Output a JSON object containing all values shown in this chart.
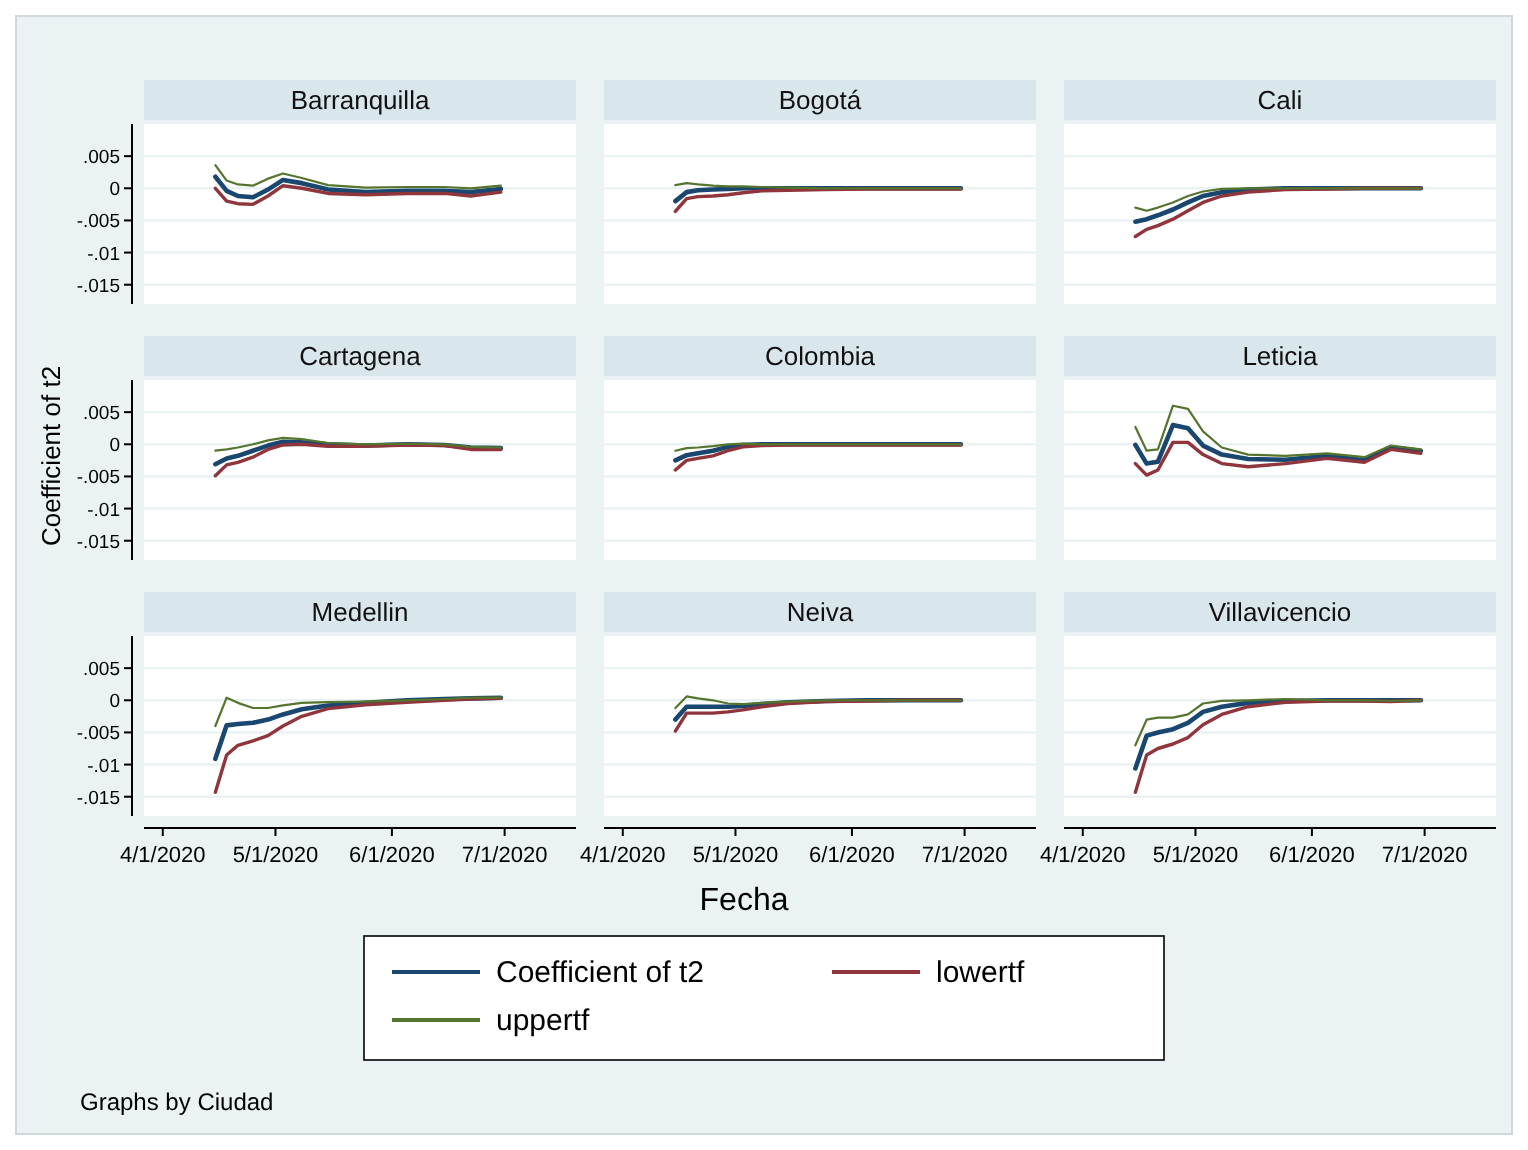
{
  "chart_data": [
    {
      "type": "line",
      "title": "Barranquilla",
      "x": [
        "2020-04-15",
        "2020-04-18",
        "2020-04-21",
        "2020-04-25",
        "2020-04-29",
        "2020-05-03",
        "2020-05-08",
        "2020-05-15",
        "2020-05-25",
        "2020-06-05",
        "2020-06-15",
        "2020-06-22",
        "2020-06-30"
      ],
      "xlim": [
        "2020-03-27",
        "2020-07-20"
      ],
      "ylim": [
        -0.018,
        0.01
      ],
      "yticks": [
        {
          "value": -0.015,
          "label": "-.015"
        },
        {
          "value": -0.01,
          "label": "-.01"
        },
        {
          "value": -0.005,
          "label": "-.005"
        },
        {
          "value": 0,
          "label": "0"
        },
        {
          "value": 0.005,
          "label": ".005"
        }
      ],
      "grid": "y",
      "tick_labels": "y",
      "series": [
        {
          "color": "#1a476f",
          "values": [
            0.0018,
            -0.0004,
            -0.0012,
            -0.0014,
            -0.0002,
            0.0013,
            0.0008,
            -0.0002,
            -0.0006,
            -0.0004,
            -0.0004,
            -0.0006,
            -0.0001
          ]
        },
        {
          "color": "#90353b",
          "values": [
            0,
            -0.002,
            -0.0024,
            -0.0025,
            -0.0012,
            0.0004,
            0,
            -0.0008,
            -0.001,
            -0.0008,
            -0.0008,
            -0.0012,
            -0.0006
          ]
        },
        {
          "color": "#55752f",
          "values": [
            0.0036,
            0.0012,
            0.0006,
            0.0004,
            0.0015,
            0.0023,
            0.0016,
            0.0005,
            0.0001,
            0.0002,
            0.0002,
            0,
            0.0004
          ]
        }
      ]
    },
    {
      "type": "line",
      "title": "Bogotá",
      "x": [
        "2020-04-15",
        "2020-04-18",
        "2020-04-21",
        "2020-04-25",
        "2020-04-29",
        "2020-05-03",
        "2020-05-08",
        "2020-05-15",
        "2020-05-25",
        "2020-06-05",
        "2020-06-15",
        "2020-06-22",
        "2020-06-30"
      ],
      "xlim": [
        "2020-03-27",
        "2020-07-20"
      ],
      "ylim": [
        -0.018,
        0.01
      ],
      "yticks": [
        -0.015,
        -0.01,
        -0.005,
        0,
        0.005
      ],
      "grid": "y",
      "tick_labels": false,
      "series": [
        {
          "color": "#1a476f",
          "values": [
            -0.002,
            -0.0006,
            -0.0003,
            -0.0002,
            -0.0001,
            0,
            0,
            0,
            0,
            0,
            0,
            0,
            0
          ]
        },
        {
          "color": "#90353b",
          "values": [
            -0.0036,
            -0.0016,
            -0.0013,
            -0.0012,
            -0.001,
            -0.0007,
            -0.0004,
            -0.0003,
            -0.0002,
            -0.0001,
            -0.0001,
            -0.0001,
            -0.0001
          ]
        },
        {
          "color": "#55752f",
          "values": [
            0.0005,
            0.0008,
            0.0006,
            0.0004,
            0.0003,
            0.0003,
            0.0002,
            0.0001,
            0,
            0,
            0,
            0,
            0
          ]
        }
      ]
    },
    {
      "type": "line",
      "title": "Cali",
      "x": [
        "2020-04-15",
        "2020-04-18",
        "2020-04-21",
        "2020-04-25",
        "2020-04-29",
        "2020-05-03",
        "2020-05-08",
        "2020-05-15",
        "2020-05-25",
        "2020-06-05",
        "2020-06-15",
        "2020-06-22",
        "2020-06-30"
      ],
      "xlim": [
        "2020-03-27",
        "2020-07-20"
      ],
      "ylim": [
        -0.018,
        0.01
      ],
      "yticks": [
        -0.015,
        -0.01,
        -0.005,
        0,
        0.005
      ],
      "grid": "y",
      "tick_labels": false,
      "series": [
        {
          "color": "#1a476f",
          "values": [
            -0.0052,
            -0.0048,
            -0.0042,
            -0.0033,
            -0.0022,
            -0.0012,
            -0.0006,
            -0.0002,
            0,
            0,
            0,
            0,
            0
          ]
        },
        {
          "color": "#90353b",
          "values": [
            -0.0075,
            -0.0064,
            -0.0058,
            -0.0048,
            -0.0035,
            -0.0022,
            -0.0012,
            -0.0006,
            -0.0002,
            -0.0001,
            0,
            0,
            0
          ]
        },
        {
          "color": "#55752f",
          "values": [
            -0.003,
            -0.0035,
            -0.003,
            -0.0022,
            -0.0012,
            -0.0005,
            -0.0001,
            0,
            0,
            0,
            0,
            0,
            0
          ]
        }
      ]
    },
    {
      "type": "line",
      "title": "Cartagena",
      "ylabel": "Coefficient of t2",
      "x": [
        "2020-04-15",
        "2020-04-18",
        "2020-04-21",
        "2020-04-25",
        "2020-04-29",
        "2020-05-03",
        "2020-05-08",
        "2020-05-15",
        "2020-05-25",
        "2020-06-05",
        "2020-06-15",
        "2020-06-22",
        "2020-06-30"
      ],
      "xlim": [
        "2020-03-27",
        "2020-07-20"
      ],
      "ylim": [
        -0.018,
        0.01
      ],
      "yticks": [
        {
          "value": -0.015,
          "label": "-.015"
        },
        {
          "value": -0.01,
          "label": "-.01"
        },
        {
          "value": -0.005,
          "label": "-.005"
        },
        {
          "value": 0,
          "label": "0"
        },
        {
          "value": 0.005,
          "label": ".005"
        }
      ],
      "grid": "y",
      "tick_labels": "y",
      "series": [
        {
          "color": "#1a476f",
          "values": [
            -0.0031,
            -0.0022,
            -0.0018,
            -0.001,
            -0.0002,
            0.0004,
            0.0003,
            0,
            -0.0002,
            0,
            -0.0001,
            -0.0005,
            -0.0006
          ]
        },
        {
          "color": "#90353b",
          "values": [
            -0.0049,
            -0.0032,
            -0.0028,
            -0.002,
            -0.0008,
            -0.0001,
            0,
            -0.0003,
            -0.0003,
            -0.0001,
            -0.0002,
            -0.0008,
            -0.0008
          ]
        },
        {
          "color": "#55752f",
          "values": [
            -0.001,
            -0.0008,
            -0.0005,
            0,
            0.0006,
            0.001,
            0.0008,
            0.0002,
            0,
            0.0001,
            0,
            -0.0004,
            -0.0005
          ]
        }
      ]
    },
    {
      "type": "line",
      "title": "Colombia",
      "x": [
        "2020-04-15",
        "2020-04-18",
        "2020-04-21",
        "2020-04-25",
        "2020-04-29",
        "2020-05-03",
        "2020-05-08",
        "2020-05-15",
        "2020-05-25",
        "2020-06-05",
        "2020-06-15",
        "2020-06-22",
        "2020-06-30"
      ],
      "xlim": [
        "2020-03-27",
        "2020-07-20"
      ],
      "ylim": [
        -0.018,
        0.01
      ],
      "yticks": [
        -0.015,
        -0.01,
        -0.005,
        0,
        0.005
      ],
      "grid": "y",
      "tick_labels": false,
      "series": [
        {
          "color": "#1a476f",
          "values": [
            -0.0025,
            -0.0017,
            -0.0014,
            -0.001,
            -0.0004,
            -0.0001,
            0,
            0,
            0,
            0,
            0,
            0,
            0
          ]
        },
        {
          "color": "#90353b",
          "values": [
            -0.004,
            -0.0025,
            -0.0022,
            -0.0018,
            -0.001,
            -0.0004,
            -0.0002,
            -0.0001,
            -0.0001,
            -0.0001,
            -0.0001,
            -0.0001,
            -0.0001
          ]
        },
        {
          "color": "#55752f",
          "values": [
            -0.001,
            -0.0006,
            -0.0005,
            -0.0003,
            0,
            0.0001,
            0,
            0,
            0,
            0,
            0,
            0,
            0
          ]
        }
      ]
    },
    {
      "type": "line",
      "title": "Leticia",
      "x": [
        "2020-04-15",
        "2020-04-18",
        "2020-04-21",
        "2020-04-25",
        "2020-04-29",
        "2020-05-03",
        "2020-05-08",
        "2020-05-15",
        "2020-05-25",
        "2020-06-05",
        "2020-06-15",
        "2020-06-22",
        "2020-06-30"
      ],
      "xlim": [
        "2020-03-27",
        "2020-07-20"
      ],
      "ylim": [
        -0.018,
        0.01
      ],
      "yticks": [
        -0.015,
        -0.01,
        -0.005,
        0,
        0.005
      ],
      "grid": "y",
      "tick_labels": false,
      "series": [
        {
          "color": "#1a476f",
          "values": [
            -0.0001,
            -0.003,
            -0.0027,
            0.003,
            0.0025,
            -0.0002,
            -0.0016,
            -0.0023,
            -0.0024,
            -0.0018,
            -0.0025,
            -0.0005,
            -0.001
          ]
        },
        {
          "color": "#90353b",
          "values": [
            -0.003,
            -0.0048,
            -0.004,
            0.0003,
            0.0003,
            -0.0016,
            -0.003,
            -0.0035,
            -0.003,
            -0.0022,
            -0.0028,
            -0.0008,
            -0.0014
          ]
        },
        {
          "color": "#55752f",
          "values": [
            0.0027,
            -0.001,
            -0.0008,
            0.006,
            0.0055,
            0.002,
            -0.0005,
            -0.0016,
            -0.0018,
            -0.0014,
            -0.002,
            -0.0002,
            -0.0008
          ]
        }
      ]
    },
    {
      "type": "line",
      "title": "Medellin",
      "x": [
        "2020-04-15",
        "2020-04-18",
        "2020-04-21",
        "2020-04-25",
        "2020-04-29",
        "2020-05-03",
        "2020-05-08",
        "2020-05-15",
        "2020-05-25",
        "2020-06-05",
        "2020-06-15",
        "2020-06-22",
        "2020-06-30"
      ],
      "xlim": [
        "2020-03-27",
        "2020-07-20"
      ],
      "xticks": [
        {
          "value": "2020-04-01",
          "label": "4/1/2020"
        },
        {
          "value": "2020-05-01",
          "label": "5/1/2020"
        },
        {
          "value": "2020-06-01",
          "label": "6/1/2020"
        },
        {
          "value": "2020-07-01",
          "label": "7/1/2020"
        }
      ],
      "ylim": [
        -0.018,
        0.01
      ],
      "yticks": [
        {
          "value": -0.015,
          "label": "-.015"
        },
        {
          "value": -0.01,
          "label": "-.01"
        },
        {
          "value": -0.005,
          "label": "-.005"
        },
        {
          "value": 0,
          "label": "0"
        },
        {
          "value": 0.005,
          "label": ".005"
        }
      ],
      "grid": "y",
      "annotations": [
        "Graphs by Ciudad"
      ],
      "series": [
        {
          "color": "#1a476f",
          "values": [
            -0.0091,
            -0.0039,
            -0.0037,
            -0.0035,
            -0.003,
            -0.0022,
            -0.0014,
            -0.0008,
            -0.0004,
            0,
            0.0002,
            0.0003,
            0.0004
          ]
        },
        {
          "color": "#90353b",
          "values": [
            -0.0143,
            -0.0085,
            -0.007,
            -0.0063,
            -0.0055,
            -0.004,
            -0.0025,
            -0.0013,
            -0.0007,
            -0.0003,
            0,
            0.0002,
            0.0003
          ]
        },
        {
          "color": "#55752f",
          "values": [
            -0.004,
            0.0004,
            -0.0004,
            -0.0012,
            -0.0012,
            -0.0008,
            -0.0004,
            -0.0003,
            -0.0002,
            0,
            0.0002,
            0.0004,
            0.0004
          ]
        }
      ]
    },
    {
      "type": "line",
      "title": "Neiva",
      "xlabel": "Fecha",
      "legend": "bottom",
      "x": [
        "2020-04-15",
        "2020-04-18",
        "2020-04-21",
        "2020-04-25",
        "2020-04-29",
        "2020-05-03",
        "2020-05-08",
        "2020-05-15",
        "2020-05-25",
        "2020-06-05",
        "2020-06-15",
        "2020-06-22",
        "2020-06-30"
      ],
      "xlim": [
        "2020-03-27",
        "2020-07-20"
      ],
      "xticks": [
        {
          "value": "2020-04-01",
          "label": "4/1/2020"
        },
        {
          "value": "2020-05-01",
          "label": "5/1/2020"
        },
        {
          "value": "2020-06-01",
          "label": "6/1/2020"
        },
        {
          "value": "2020-07-01",
          "label": "7/1/2020"
        }
      ],
      "ylim": [
        -0.018,
        0.01
      ],
      "yticks": [
        -0.015,
        -0.01,
        -0.005,
        0,
        0.005
      ],
      "grid": "y",
      "tick_labels": "x",
      "series": [
        {
          "name": "Coefficient of t2",
          "color": "#1a476f",
          "values": [
            -0.003,
            -0.001,
            -0.001,
            -0.001,
            -0.001,
            -0.0009,
            -0.0006,
            -0.0003,
            -0.0001,
            0,
            0,
            0,
            0
          ]
        },
        {
          "name": "lowertf",
          "color": "#90353b",
          "values": [
            -0.0048,
            -0.002,
            -0.002,
            -0.002,
            -0.0018,
            -0.0015,
            -0.001,
            -0.0005,
            -0.0002,
            -0.0001,
            0,
            0,
            0
          ]
        },
        {
          "name": "uppertf",
          "color": "#55752f",
          "values": [
            -0.0012,
            0.0006,
            0.0003,
            0,
            -0.0005,
            -0.0006,
            -0.0004,
            -0.0002,
            0,
            0,
            0,
            0,
            0
          ]
        }
      ]
    },
    {
      "type": "line",
      "title": "Villavicencio",
      "x": [
        "2020-04-15",
        "2020-04-18",
        "2020-04-21",
        "2020-04-25",
        "2020-04-29",
        "2020-05-03",
        "2020-05-08",
        "2020-05-15",
        "2020-05-25",
        "2020-06-05",
        "2020-06-15",
        "2020-06-22",
        "2020-06-30"
      ],
      "xlim": [
        "2020-03-27",
        "2020-07-20"
      ],
      "xticks": [
        {
          "value": "2020-04-01",
          "label": "4/1/2020"
        },
        {
          "value": "2020-05-01",
          "label": "5/1/2020"
        },
        {
          "value": "2020-06-01",
          "label": "6/1/2020"
        },
        {
          "value": "2020-07-01",
          "label": "7/1/2020"
        }
      ],
      "ylim": [
        -0.018,
        0.01
      ],
      "yticks": [
        -0.015,
        -0.01,
        -0.005,
        0,
        0.005
      ],
      "grid": "y",
      "tick_labels": "x",
      "series": [
        {
          "color": "#1a476f",
          "values": [
            -0.0106,
            -0.0055,
            -0.005,
            -0.0045,
            -0.0035,
            -0.0018,
            -0.001,
            -0.0004,
            -0.0001,
            0,
            0,
            0,
            0
          ]
        },
        {
          "color": "#90353b",
          "values": [
            -0.0143,
            -0.0085,
            -0.0075,
            -0.0068,
            -0.0058,
            -0.0038,
            -0.0022,
            -0.001,
            -0.0003,
            -0.0001,
            -0.0001,
            -0.0002,
            0
          ]
        },
        {
          "color": "#55752f",
          "values": [
            -0.007,
            -0.003,
            -0.0027,
            -0.0027,
            -0.0022,
            -0.0005,
            -0.0001,
            0,
            0.0002,
            0,
            0,
            -0.0001,
            0
          ]
        }
      ]
    }
  ]
}
